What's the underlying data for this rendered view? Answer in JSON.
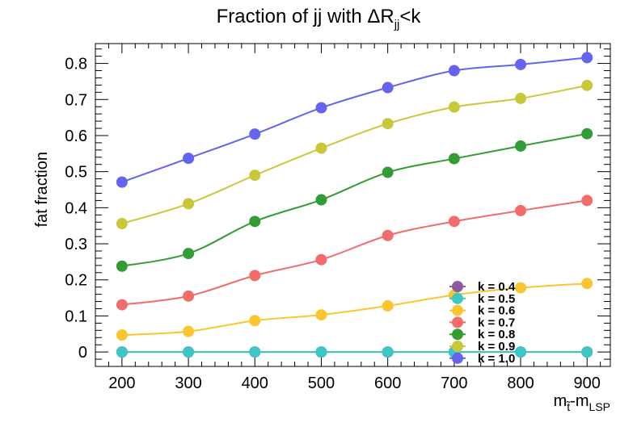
{
  "chart_data": {
    "type": "line",
    "title": {
      "main": "Fraction of jj with ΔR",
      "sub": "jj",
      "tail": "<k"
    },
    "ylabel": "fat fraction",
    "xlabel": {
      "m1": "m",
      "sub1": "t̃",
      "sep": "-",
      "m2": "m",
      "sub2": "LSP"
    },
    "x": [
      200,
      300,
      400,
      500,
      600,
      700,
      800,
      900
    ],
    "xlim": [
      160,
      935
    ],
    "ylim": [
      -0.04,
      0.855
    ],
    "xticks": [
      200,
      300,
      400,
      500,
      600,
      700,
      800,
      900
    ],
    "yticks": [
      0,
      0.1,
      0.2,
      0.3,
      0.4,
      0.5,
      0.6,
      0.7,
      0.8
    ],
    "ytick_labels": [
      "0",
      "0.1",
      "0.2",
      "0.3",
      "0.4",
      "0.5",
      "0.6",
      "0.7",
      "0.8"
    ],
    "grid": false,
    "legend_position": "bottom-right",
    "series": [
      {
        "name": "k = 0.4",
        "color": "#8c5b9b",
        "values": [
          0.0,
          0.0,
          0.0,
          0.0,
          0.0,
          0.0,
          0.0,
          0.0
        ]
      },
      {
        "name": "k = 0.5",
        "color": "#3cc6c6",
        "values": [
          0.0,
          0.0,
          0.0,
          0.0,
          0.0,
          0.0,
          0.0,
          0.0
        ]
      },
      {
        "name": "k = 0.6",
        "color": "#fbc52f",
        "values": [
          0.047,
          0.057,
          0.087,
          0.103,
          0.128,
          0.158,
          0.178,
          0.19
        ]
      },
      {
        "name": "k = 0.7",
        "color": "#f36c6c",
        "values": [
          0.131,
          0.155,
          0.212,
          0.256,
          0.323,
          0.362,
          0.392,
          0.42
        ]
      },
      {
        "name": "k = 0.8",
        "color": "#349c34",
        "values": [
          0.238,
          0.273,
          0.362,
          0.422,
          0.498,
          0.536,
          0.571,
          0.605
        ]
      },
      {
        "name": "k = 0.9",
        "color": "#c9c83a",
        "values": [
          0.356,
          0.411,
          0.49,
          0.565,
          0.633,
          0.679,
          0.703,
          0.739
        ]
      },
      {
        "name": "k = 1.0",
        "color": "#6464ee",
        "values": [
          0.471,
          0.537,
          0.604,
          0.677,
          0.733,
          0.78,
          0.797,
          0.816
        ]
      }
    ]
  }
}
